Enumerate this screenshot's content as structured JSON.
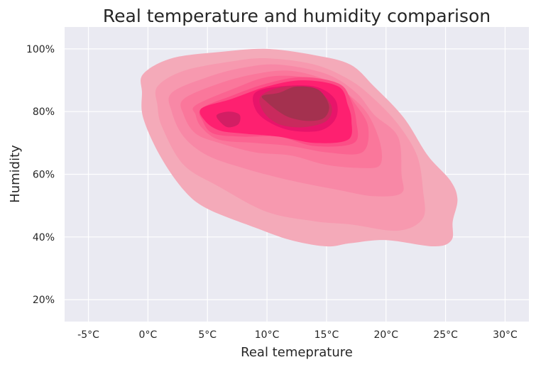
{
  "chart_data": {
    "type": "kde_contour_filled",
    "title": "Real temperature and humidity comparison",
    "xlabel": "Real temeprature",
    "ylabel": "Humidity",
    "xlim": [
      -7,
      32
    ],
    "ylim": [
      0.13,
      1.07
    ],
    "x_ticks": [
      -5,
      0,
      5,
      10,
      15,
      20,
      25,
      30
    ],
    "x_tick_labels": [
      "-5°C",
      "0°C",
      "5°C",
      "10°C",
      "15°C",
      "20°C",
      "25°C",
      "30°C"
    ],
    "y_ticks": [
      0.2,
      0.4,
      0.6,
      0.8,
      1.0
    ],
    "y_tick_labels": [
      "20%",
      "40%",
      "60%",
      "80%",
      "100%"
    ],
    "grid": true,
    "background": "#eaeaf2",
    "density_levels": [
      {
        "level": 1,
        "color": "#f4aab9",
        "outline": [
          [
            -0.4,
            0.92
          ],
          [
            2,
            0.97
          ],
          [
            6,
            0.99
          ],
          [
            10,
            1.0
          ],
          [
            14,
            0.98
          ],
          [
            17,
            0.95
          ],
          [
            19,
            0.88
          ],
          [
            21.5,
            0.78
          ],
          [
            23.5,
            0.66
          ],
          [
            25.4,
            0.58
          ],
          [
            26,
            0.52
          ],
          [
            25.6,
            0.45
          ],
          [
            25.5,
            0.39
          ],
          [
            24,
            0.37
          ],
          [
            20,
            0.39
          ],
          [
            17,
            0.38
          ],
          [
            15,
            0.37
          ],
          [
            12,
            0.39
          ],
          [
            9,
            0.43
          ],
          [
            5,
            0.49
          ],
          [
            3,
            0.55
          ],
          [
            1,
            0.66
          ],
          [
            -0.4,
            0.78
          ],
          [
            -0.5,
            0.86
          ]
        ]
      },
      {
        "level": 2,
        "color": "#f799af",
        "outline": [
          [
            0.8,
            0.88
          ],
          [
            3,
            0.93
          ],
          [
            7,
            0.96
          ],
          [
            10,
            0.97
          ],
          [
            14,
            0.95
          ],
          [
            17,
            0.9
          ],
          [
            19,
            0.84
          ],
          [
            21,
            0.76
          ],
          [
            22.6,
            0.66
          ],
          [
            23.1,
            0.55
          ],
          [
            23.1,
            0.46
          ],
          [
            21,
            0.42
          ],
          [
            17,
            0.44
          ],
          [
            14,
            0.45
          ],
          [
            10,
            0.48
          ],
          [
            6,
            0.56
          ],
          [
            3,
            0.63
          ],
          [
            1.2,
            0.75
          ],
          [
            0.8,
            0.82
          ]
        ]
      },
      {
        "level": 3,
        "color": "#f888a6",
        "outline": [
          [
            2,
            0.86
          ],
          [
            5,
            0.91
          ],
          [
            8,
            0.94
          ],
          [
            11,
            0.95
          ],
          [
            15,
            0.92
          ],
          [
            17.5,
            0.86
          ],
          [
            19,
            0.79
          ],
          [
            21,
            0.72
          ],
          [
            21.3,
            0.6
          ],
          [
            21.3,
            0.54
          ],
          [
            19,
            0.53
          ],
          [
            16,
            0.55
          ],
          [
            12,
            0.58
          ],
          [
            8,
            0.62
          ],
          [
            5,
            0.66
          ],
          [
            3,
            0.72
          ],
          [
            2,
            0.8
          ]
        ]
      },
      {
        "level": 4,
        "color": "#fa779b",
        "outline": [
          [
            3,
            0.84
          ],
          [
            6,
            0.89
          ],
          [
            9,
            0.92
          ],
          [
            12,
            0.93
          ],
          [
            15,
            0.9
          ],
          [
            17,
            0.85
          ],
          [
            18.5,
            0.79
          ],
          [
            19.5,
            0.7
          ],
          [
            19.5,
            0.63
          ],
          [
            18,
            0.62
          ],
          [
            15,
            0.63
          ],
          [
            12,
            0.66
          ],
          [
            9,
            0.67
          ],
          [
            6,
            0.7
          ],
          [
            4,
            0.73
          ],
          [
            3,
            0.79
          ]
        ]
      },
      {
        "level": 5,
        "color": "#fb6491",
        "outline": [
          [
            4,
            0.82
          ],
          [
            7,
            0.87
          ],
          [
            10,
            0.91
          ],
          [
            13,
            0.91
          ],
          [
            16,
            0.88
          ],
          [
            17.5,
            0.82
          ],
          [
            18.5,
            0.75
          ],
          [
            18,
            0.67
          ],
          [
            15,
            0.67
          ],
          [
            12,
            0.69
          ],
          [
            9,
            0.7
          ],
          [
            6,
            0.71
          ],
          [
            4.5,
            0.75
          ],
          [
            4,
            0.79
          ]
        ]
      },
      {
        "level": 6,
        "color": "#fc4e86",
        "outline": [
          [
            4.5,
            0.81
          ],
          [
            7,
            0.85
          ],
          [
            10,
            0.89
          ],
          [
            13,
            0.91
          ],
          [
            16,
            0.89
          ],
          [
            17,
            0.84
          ],
          [
            17.5,
            0.77
          ],
          [
            17.3,
            0.7
          ],
          [
            14,
            0.69
          ],
          [
            11,
            0.72
          ],
          [
            8,
            0.72
          ],
          [
            5.5,
            0.73
          ],
          [
            4.6,
            0.77
          ]
        ]
      },
      {
        "level": 7,
        "color": "#fe2070",
        "outline": [
          [
            4.5,
            0.81
          ],
          [
            7,
            0.84
          ],
          [
            10,
            0.88
          ],
          [
            13,
            0.9
          ],
          [
            16,
            0.88
          ],
          [
            16.8,
            0.82
          ],
          [
            17.1,
            0.77
          ],
          [
            16.8,
            0.71
          ],
          [
            14,
            0.7
          ],
          [
            11,
            0.72
          ],
          [
            8,
            0.73
          ],
          [
            6,
            0.74
          ],
          [
            4.8,
            0.77
          ]
        ]
      },
      {
        "level": 8,
        "color": "#e8146a",
        "outline": [
          [
            9,
            0.86
          ],
          [
            11,
            0.88
          ],
          [
            14,
            0.88
          ],
          [
            15.7,
            0.84
          ],
          [
            15.8,
            0.78
          ],
          [
            14.5,
            0.74
          ],
          [
            12,
            0.74
          ],
          [
            10,
            0.77
          ],
          [
            9,
            0.81
          ]
        ]
      },
      {
        "level": 9,
        "color": "#c92a5d",
        "outline": [
          [
            9.5,
            0.85
          ],
          [
            11.5,
            0.88
          ],
          [
            14,
            0.87
          ],
          [
            15.4,
            0.82
          ],
          [
            15,
            0.77
          ],
          [
            13,
            0.75
          ],
          [
            11,
            0.76
          ],
          [
            9.7,
            0.8
          ]
        ]
      },
      {
        "level": 10,
        "color": "#a4314f",
        "outline": [
          [
            9.6,
            0.85
          ],
          [
            11,
            0.86
          ],
          [
            12.5,
            0.88
          ],
          [
            14.3,
            0.87
          ],
          [
            15.2,
            0.82
          ],
          [
            14.8,
            0.78
          ],
          [
            13.5,
            0.77
          ],
          [
            12,
            0.78
          ],
          [
            11,
            0.8
          ],
          [
            10,
            0.83
          ]
        ]
      },
      {
        "level": 9,
        "color": "#d31e64",
        "outline": [
          [
            5.8,
            0.79
          ],
          [
            6.8,
            0.8
          ],
          [
            7.7,
            0.79
          ],
          [
            7.6,
            0.76
          ],
          [
            6.7,
            0.75
          ],
          [
            6,
            0.77
          ]
        ]
      }
    ]
  }
}
